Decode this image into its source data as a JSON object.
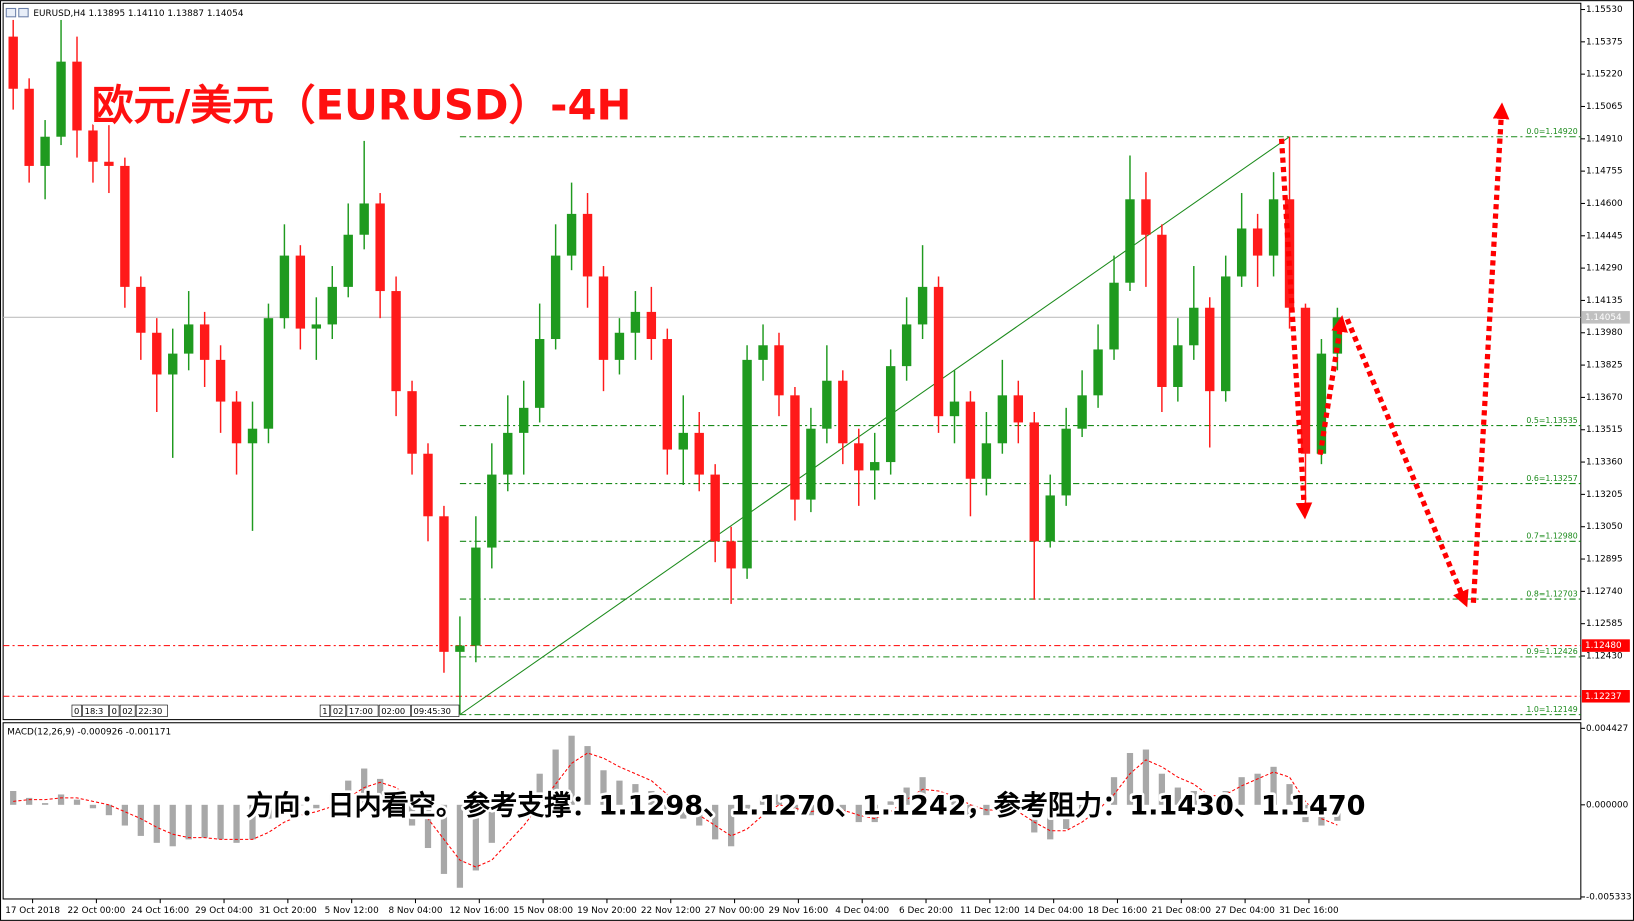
{
  "chart_data": {
    "type": "candlestick",
    "header": "EURUSD,H4  1.13895 1.14110 1.13887 1.14054",
    "title": "欧元/美元（EURUSD）-4H",
    "annotation": "方向：日内看空。参考支撑：1.1298、1.1270、1.1242，参考阻力：1.1430、1.1470",
    "categories": [
      null,
      null,
      "17 Oct 2018",
      null,
      null,
      null,
      "22 Oct 00:00",
      null,
      null,
      null,
      "24 Oct 16:00",
      null,
      null,
      null,
      "29 Oct 04:00",
      null,
      null,
      null,
      "31 Oct 20:00",
      null,
      null,
      null,
      "5 Nov 12:00",
      null,
      null,
      null,
      "8 Nov 04:00",
      null,
      null,
      null,
      "12 Nov 16:00",
      null,
      null,
      null,
      "15 Nov 08:00",
      null,
      null,
      null,
      "19 Nov 20:00",
      null,
      null,
      null,
      "22 Nov 12:00",
      null,
      null,
      null,
      "27 Nov 00:00",
      null,
      null,
      null,
      "29 Nov 16:00",
      null,
      null,
      null,
      "4 Dec 04:00",
      null,
      null,
      null,
      "6 Dec 20:00",
      null,
      null,
      null,
      "11 Dec 12:00",
      null,
      null,
      null,
      "14 Dec 04:00",
      null,
      null,
      null,
      "18 Dec 16:00",
      null,
      null,
      null,
      "21 Dec 08:00",
      null,
      null,
      null,
      "27 Dec 04:00",
      null,
      null,
      null,
      "31 Dec 16:00",
      null
    ],
    "open": [
      1.154,
      1.1515,
      1.1478,
      1.1492,
      1.1528,
      1.1495,
      1.148,
      1.1478,
      1.142,
      1.1398,
      1.1378,
      1.1388,
      1.1402,
      1.1385,
      1.1365,
      1.1345,
      1.1352,
      1.1405,
      1.1435,
      1.14,
      1.1402,
      1.142,
      1.1445,
      1.146,
      1.1418,
      1.137,
      1.134,
      1.131,
      1.1245,
      1.1248,
      1.1295,
      1.133,
      1.135,
      1.1362,
      1.1395,
      1.1435,
      1.1455,
      1.1425,
      1.1385,
      1.1398,
      1.1408,
      1.1395,
      1.1342,
      1.135,
      1.133,
      1.1298,
      1.1285,
      1.1385,
      1.1392,
      1.1368,
      1.1318,
      1.1352,
      1.1375,
      1.1345,
      1.1332,
      1.1336,
      1.1382,
      1.1402,
      1.142,
      1.1358,
      1.1365,
      1.1328,
      1.1345,
      1.1368,
      1.1355,
      1.1298,
      1.132,
      1.1352,
      1.1368,
      1.139,
      1.1422,
      1.1462,
      1.1445,
      1.1372,
      1.1392,
      1.141,
      1.137,
      1.1425,
      1.1448,
      1.1435,
      1.1462,
      1.141,
      1.134,
      1.1388
    ],
    "high": [
      1.1548,
      1.152,
      1.15,
      1.1548,
      1.154,
      1.1505,
      1.15,
      1.1482,
      1.1425,
      1.1405,
      1.14,
      1.1418,
      1.1408,
      1.1392,
      1.137,
      1.1365,
      1.1412,
      1.145,
      1.144,
      1.1415,
      1.143,
      1.146,
      1.149,
      1.1465,
      1.1425,
      1.1375,
      1.1345,
      1.1315,
      1.1262,
      1.131,
      1.1345,
      1.1368,
      1.1375,
      1.1412,
      1.145,
      1.147,
      1.1465,
      1.143,
      1.1405,
      1.1418,
      1.142,
      1.14,
      1.1368,
      1.136,
      1.1335,
      1.1305,
      1.1392,
      1.1402,
      1.1398,
      1.1372,
      1.1362,
      1.1392,
      1.138,
      1.1352,
      1.135,
      1.139,
      1.1415,
      1.144,
      1.1425,
      1.138,
      1.137,
      1.136,
      1.1385,
      1.1375,
      1.136,
      1.133,
      1.1362,
      1.138,
      1.1402,
      1.1435,
      1.1483,
      1.1475,
      1.145,
      1.1405,
      1.143,
      1.1415,
      1.1435,
      1.1465,
      1.1455,
      1.1475,
      1.1492,
      1.1412,
      1.1395,
      1.141
    ],
    "low": [
      1.1505,
      1.147,
      1.1462,
      1.1488,
      1.1482,
      1.147,
      1.1465,
      1.141,
      1.1385,
      1.136,
      1.1338,
      1.138,
      1.1372,
      1.135,
      1.133,
      1.1303,
      1.1345,
      1.14,
      1.139,
      1.1385,
      1.1395,
      1.1415,
      1.1438,
      1.1405,
      1.1358,
      1.133,
      1.1298,
      1.1235,
      1.12149,
      1.124,
      1.1285,
      1.1322,
      1.133,
      1.1355,
      1.139,
      1.1428,
      1.141,
      1.137,
      1.1378,
      1.1385,
      1.1385,
      1.133,
      1.1325,
      1.1322,
      1.1288,
      1.1268,
      1.128,
      1.1375,
      1.1358,
      1.1308,
      1.1312,
      1.1345,
      1.1335,
      1.1315,
      1.1318,
      1.133,
      1.1375,
      1.1395,
      1.135,
      1.1345,
      1.131,
      1.132,
      1.134,
      1.1345,
      1.127,
      1.1295,
      1.1315,
      1.1348,
      1.1362,
      1.1385,
      1.1418,
      1.142,
      1.136,
      1.1365,
      1.1385,
      1.1343,
      1.1365,
      1.142,
      1.142,
      1.1425,
      1.14,
      1.1313,
      1.1335,
      1.138
    ],
    "close": [
      1.1515,
      1.1478,
      1.1492,
      1.1528,
      1.1495,
      1.148,
      1.1478,
      1.142,
      1.1398,
      1.1378,
      1.1388,
      1.1402,
      1.1385,
      1.1365,
      1.1345,
      1.1352,
      1.1405,
      1.1435,
      1.14,
      1.1402,
      1.142,
      1.1445,
      1.146,
      1.1418,
      1.137,
      1.134,
      1.131,
      1.1245,
      1.1248,
      1.1295,
      1.133,
      1.135,
      1.1362,
      1.1395,
      1.1435,
      1.1455,
      1.1425,
      1.1385,
      1.1398,
      1.1408,
      1.1395,
      1.1342,
      1.135,
      1.133,
      1.1298,
      1.1285,
      1.1385,
      1.1392,
      1.1368,
      1.1318,
      1.1352,
      1.1375,
      1.1345,
      1.1332,
      1.1336,
      1.1382,
      1.1402,
      1.142,
      1.1358,
      1.1365,
      1.1328,
      1.1345,
      1.1368,
      1.1355,
      1.1298,
      1.132,
      1.1352,
      1.1368,
      1.139,
      1.1422,
      1.1462,
      1.1445,
      1.1372,
      1.1392,
      1.141,
      1.137,
      1.1425,
      1.1448,
      1.1435,
      1.1462,
      1.141,
      1.134,
      1.1388,
      1.14054
    ],
    "up_color": "#1f9a1f",
    "down_color": "#ff1a1a",
    "ylim": [
      1.12125,
      1.1556
    ],
    "yticks": [
      {
        "value": 1.1553,
        "label": "1.15530"
      },
      1.15375,
      {
        "value": 1.1522,
        "label": "1.15220"
      },
      1.15065,
      {
        "value": 1.1491,
        "label": "1.14910"
      },
      1.14755,
      {
        "value": 1.146,
        "label": "1.14600"
      },
      1.14445,
      {
        "value": 1.1429,
        "label": "1.14290"
      },
      1.14135,
      {
        "value": 1.1398,
        "label": "1.13980"
      },
      1.13825,
      {
        "value": 1.1367,
        "label": "1.13670"
      },
      1.13515,
      {
        "value": 1.1336,
        "label": "1.13360"
      },
      1.13205,
      {
        "value": 1.1305,
        "label": "1.13050"
      },
      1.12895,
      {
        "value": 1.1274,
        "label": "1.12740"
      },
      1.12585,
      {
        "value": 1.1243,
        "label": "1.12430"
      }
    ],
    "hlines": [
      {
        "value": 1.14054,
        "label": "1.14054",
        "color": "#c0c0c0",
        "dashed": false
      },
      {
        "value": 1.1248,
        "label": "1.12480",
        "color": "#ff0000",
        "dashed": true
      },
      {
        "value": 1.12237,
        "label": "1.12237",
        "color": "#ff0000",
        "dashed": true
      }
    ],
    "fib_levels": [
      {
        "value": 1.1492,
        "label": "0.0=1.14920"
      },
      {
        "value": 1.13535,
        "label": "0.5=1.13535"
      },
      {
        "value": 1.13257,
        "label": "0.6=1.13257"
      },
      {
        "value": 1.1298,
        "label": "0.7=1.12980"
      },
      {
        "value": 1.12703,
        "label": "0.8=1.12703"
      },
      {
        "value": 1.12426,
        "label": "0.9=1.12426"
      },
      {
        "value": 1.12149,
        "label": "1.0=1.12149"
      }
    ],
    "fib_color": "#1a8a1a",
    "trendline_color": "#1a8a1a",
    "object_labels": [
      [
        "0",
        "18:3",
        "0",
        "02",
        "22:30"
      ],
      [
        "1",
        "02",
        "17:00",
        "02:00",
        "09:45:30"
      ]
    ],
    "macd": {
      "type": "macd",
      "label": "MACD(12,26,9) -0.000926 -0.001171",
      "histogram": [
        0.0008,
        0.0004,
        0.0001,
        0.0006,
        0.0003,
        -0.0002,
        -0.0006,
        -0.0012,
        -0.0018,
        -0.0022,
        -0.0024,
        -0.002,
        -0.0019,
        -0.002,
        -0.0022,
        -0.002,
        -0.0008,
        0.0002,
        0.0,
        -0.0002,
        0.0006,
        0.0014,
        0.0021,
        0.0015,
        0.0002,
        -0.0012,
        -0.0025,
        -0.004,
        -0.0048,
        -0.0038,
        -0.0022,
        -0.0008,
        0.0004,
        0.0018,
        0.0032,
        0.004,
        0.0034,
        0.002,
        0.0014,
        0.0012,
        0.0008,
        -0.0004,
        -0.0008,
        -0.0012,
        -0.002,
        -0.0024,
        -0.0006,
        0.0004,
        0.0006,
        -0.0004,
        -0.0006,
        0.0,
        -0.0004,
        -0.001,
        -0.001,
        0.0002,
        0.001,
        0.0016,
        0.0006,
        0.0002,
        -0.0006,
        -0.0006,
        -0.0002,
        -0.0004,
        -0.0016,
        -0.002,
        -0.0014,
        -0.0006,
        0.0004,
        0.0016,
        0.003,
        0.0032,
        0.0018,
        0.001,
        0.0008,
        0.0,
        0.0008,
        0.0016,
        0.0018,
        0.0022,
        0.0012,
        -0.001,
        -0.0012,
        -0.000926
      ],
      "signal": [
        0.0002,
        0.0003,
        0.0003,
        0.0004,
        0.0004,
        0.0002,
        0.0,
        -0.0004,
        -0.0008,
        -0.0013,
        -0.0017,
        -0.0019,
        -0.0019,
        -0.002,
        -0.002,
        -0.002,
        -0.0016,
        -0.001,
        -0.0006,
        -0.0004,
        -0.0001,
        0.0004,
        0.001,
        0.0013,
        0.001,
        0.0003,
        -0.0008,
        -0.002,
        -0.0032,
        -0.0036,
        -0.0032,
        -0.0022,
        -0.0012,
        0.0,
        0.0012,
        0.0024,
        0.003,
        0.0027,
        0.0022,
        0.0018,
        0.0014,
        0.0006,
        0.0,
        -0.0006,
        -0.0012,
        -0.0018,
        -0.0014,
        -0.0006,
        0.0,
        -0.0002,
        -0.0004,
        -0.0002,
        -0.0003,
        -0.0006,
        -0.0008,
        -0.0004,
        0.0003,
        0.0009,
        0.0008,
        0.0005,
        0.0,
        -0.0003,
        -0.0003,
        -0.0004,
        -0.001,
        -0.0015,
        -0.0015,
        -0.001,
        -0.0003,
        0.0006,
        0.0018,
        0.0026,
        0.0022,
        0.0016,
        0.0012,
        0.0005,
        0.0006,
        0.0011,
        0.0015,
        0.0019,
        0.0016,
        0.0002,
        -0.0008,
        -0.001171
      ],
      "ylim": [
        -0.00545,
        0.00475
      ],
      "yticks": [
        0.004427,
        {
          "value": 0,
          "label": "0.000000"
        },
        -0.005333
      ],
      "histogram_color": "#a8a8a8",
      "signal_color": "#ff0000"
    }
  }
}
